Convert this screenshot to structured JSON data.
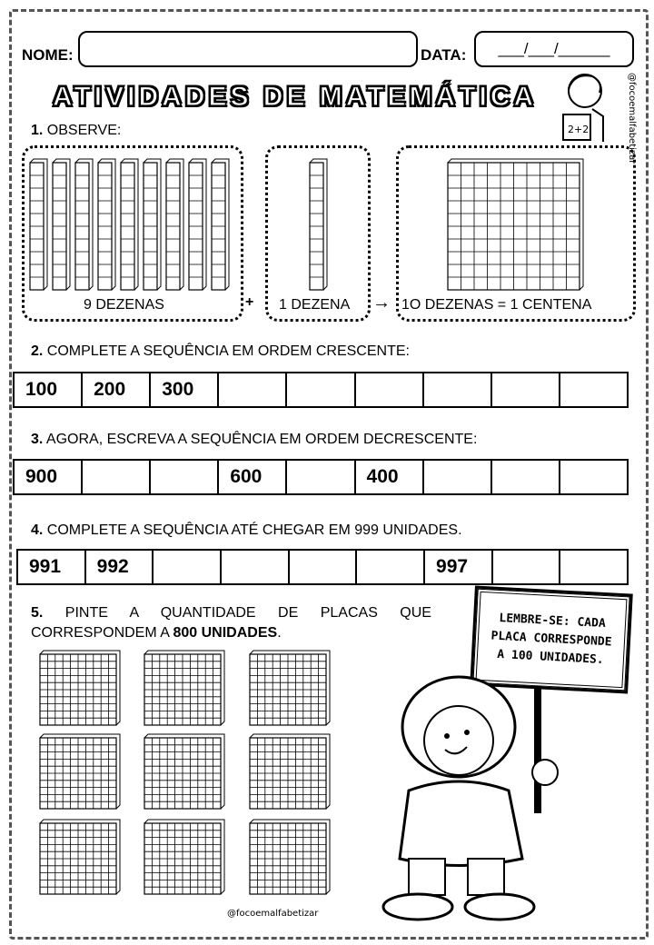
{
  "header": {
    "name_label": "NOME:",
    "date_label": "DATA:",
    "date_placeholder": "___/___/______"
  },
  "title": "ATIVIDADES DE MATEMÁTICA",
  "q1": {
    "num": "1.",
    "text": " OBSERVE:",
    "box1_label": "9 DEZENAS",
    "plus": "+",
    "box2_label": "1 DEZENA",
    "arrow": "→",
    "box3_label": "1O DEZENAS = 1 CENTENA"
  },
  "q2": {
    "num": "2.",
    "text": " COMPLETE A SEQUÊNCIA EM ORDEM CRESCENTE:",
    "cells": [
      "100",
      "200",
      "300",
      "",
      "",
      "",
      "",
      "",
      ""
    ]
  },
  "q3": {
    "num": "3.",
    "text": " AGORA, ESCREVA A SEQUÊNCIA EM ORDEM DECRESCENTE:",
    "cells": [
      "900",
      "",
      "",
      "600",
      "",
      "400",
      "",
      "",
      ""
    ]
  },
  "q4": {
    "num": "4.",
    "text": " COMPLETE A SEQUÊNCIA ATÉ CHEGAR EM 999 UNIDADES.",
    "cells": [
      "991",
      "992",
      "",
      "",
      "",
      "",
      "997",
      "",
      ""
    ]
  },
  "q5": {
    "num": "5.",
    "line1": " PINTE A QUANTIDADE DE PLACAS QUE",
    "line2a": "CORRESPONDEM A ",
    "line2b": "800 UNIDADES",
    "line2c": "."
  },
  "sign": {
    "line1": "LEMBRE-SE: CADA",
    "line2": "PLACA CORRESPONDE",
    "line3": "A 100 UNIDADES."
  },
  "watermark": "@focoemalfabetizar"
}
